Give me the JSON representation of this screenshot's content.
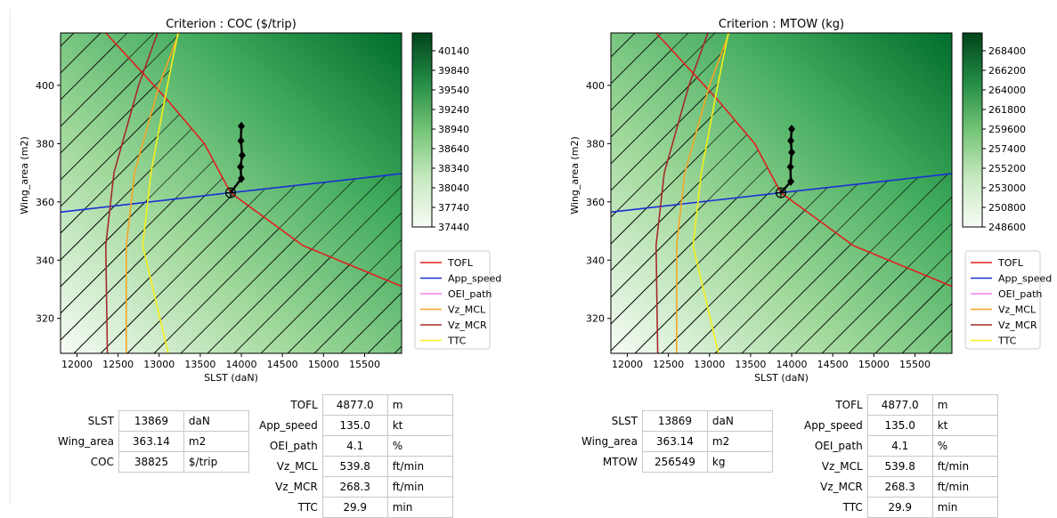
{
  "colors": {
    "TOFL": "#e02020",
    "App_speed": "#1a2fd6",
    "OEI_path": "#ee82ee",
    "Vz_MCL": "#f5a623",
    "Vz_MCR": "#a52a2a",
    "TTC": "#f5ef1a",
    "colormap_low": "#f7fcf5",
    "colormap_high": "#00441b"
  },
  "chart_data": [
    {
      "type": "contour",
      "title": "Criterion : COC ($/trip)",
      "xlabel": "SLST (daN)",
      "ylabel": "Wing_area (m2)",
      "xlim": [
        11800,
        15950
      ],
      "ylim": [
        308,
        418
      ],
      "xticks": [
        "12000",
        "12500",
        "13000",
        "13500",
        "14000",
        "14500",
        "15000",
        "15500"
      ],
      "yticks": [
        "320",
        "340",
        "360",
        "380",
        "400"
      ],
      "colorbar_ticks": [
        "37440",
        "37740",
        "38040",
        "38340",
        "38640",
        "38940",
        "39240",
        "39540",
        "39840",
        "40140"
      ],
      "optimum": {
        "x": 13869,
        "y": 363.14
      },
      "search_path": [
        [
          13869,
          363.14
        ],
        [
          14000,
          368
        ],
        [
          13990,
          372
        ],
        [
          14010,
          376
        ],
        [
          13995,
          381
        ],
        [
          14000,
          386
        ]
      ],
      "legend": [
        "TOFL",
        "App_speed",
        "OEI_path",
        "Vz_MCL",
        "Vz_MCR",
        "TTC"
      ],
      "legend_position": "right",
      "series": [
        {
          "name": "TOFL",
          "points": [
            [
              12350,
              418
            ],
            [
              13100,
              395
            ],
            [
              13550,
              380
            ],
            [
              13869,
              363.14
            ],
            [
              14750,
              345
            ],
            [
              15950,
              331
            ]
          ]
        },
        {
          "name": "App_speed",
          "points": [
            [
              11800,
              356.5
            ],
            [
              13869,
              363.14
            ],
            [
              15950,
              369.7
            ]
          ]
        },
        {
          "name": "OEI_path",
          "points": []
        },
        {
          "name": "Vz_MCL",
          "points": [
            [
              13240,
              418
            ],
            [
              13000,
              400
            ],
            [
              12700,
              370
            ],
            [
              12600,
              345
            ],
            [
              12600,
              308
            ]
          ]
        },
        {
          "name": "Vz_MCR",
          "points": [
            [
              12980,
              418
            ],
            [
              12750,
              400
            ],
            [
              12450,
              370
            ],
            [
              12350,
              345
            ],
            [
              12370,
              308
            ]
          ]
        },
        {
          "name": "TTC",
          "points": [
            [
              13230,
              418
            ],
            [
              13100,
              400
            ],
            [
              12900,
              370
            ],
            [
              12800,
              345
            ],
            [
              13110,
              308
            ]
          ]
        }
      ]
    },
    {
      "type": "contour",
      "title": "Criterion : MTOW (kg)",
      "xlabel": "SLST (daN)",
      "ylabel": "Wing_area (m2)",
      "xlim": [
        11800,
        15950
      ],
      "ylim": [
        308,
        418
      ],
      "xticks": [
        "12000",
        "12500",
        "13000",
        "13500",
        "14000",
        "14500",
        "15000",
        "15500"
      ],
      "yticks": [
        "320",
        "340",
        "360",
        "380",
        "400"
      ],
      "colorbar_ticks": [
        "248600",
        "250800",
        "253000",
        "255200",
        "257400",
        "259600",
        "261800",
        "264000",
        "266200",
        "268400"
      ],
      "optimum": {
        "x": 13869,
        "y": 363.14
      },
      "search_path": [
        [
          13869,
          363.14
        ],
        [
          13990,
          367
        ],
        [
          13985,
          372
        ],
        [
          14000,
          377
        ],
        [
          13990,
          381
        ],
        [
          14000,
          385
        ]
      ],
      "legend": [
        "TOFL",
        "App_speed",
        "OEI_path",
        "Vz_MCL",
        "Vz_MCR",
        "TTC"
      ],
      "legend_position": "right",
      "series": [
        {
          "name": "TOFL",
          "points": [
            [
              12350,
              418
            ],
            [
              13100,
              395
            ],
            [
              13550,
              380
            ],
            [
              13869,
              363.14
            ],
            [
              14750,
              345
            ],
            [
              15950,
              331
            ]
          ]
        },
        {
          "name": "App_speed",
          "points": [
            [
              11800,
              356.5
            ],
            [
              13869,
              363.14
            ],
            [
              15950,
              369.7
            ]
          ]
        },
        {
          "name": "OEI_path",
          "points": []
        },
        {
          "name": "Vz_MCL",
          "points": [
            [
              13240,
              418
            ],
            [
              13000,
              400
            ],
            [
              12700,
              370
            ],
            [
              12600,
              345
            ],
            [
              12600,
              308
            ]
          ]
        },
        {
          "name": "Vz_MCR",
          "points": [
            [
              12980,
              418
            ],
            [
              12750,
              400
            ],
            [
              12450,
              370
            ],
            [
              12350,
              345
            ],
            [
              12370,
              308
            ]
          ]
        },
        {
          "name": "TTC",
          "points": [
            [
              13230,
              418
            ],
            [
              13100,
              400
            ],
            [
              12900,
              370
            ],
            [
              12800,
              345
            ],
            [
              13110,
              308
            ]
          ]
        }
      ]
    }
  ],
  "tables": [
    {
      "design": [
        [
          "SLST",
          "13869",
          "daN"
        ],
        [
          "Wing_area",
          "363.14",
          "m2"
        ],
        [
          "COC",
          "38825",
          "$/trip"
        ]
      ],
      "constraints": [
        [
          "TOFL",
          "4877.0",
          "m"
        ],
        [
          "App_speed",
          "135.0",
          "kt"
        ],
        [
          "OEI_path",
          "4.1",
          "%"
        ],
        [
          "Vz_MCL",
          "539.8",
          "ft/min"
        ],
        [
          "Vz_MCR",
          "268.3",
          "ft/min"
        ],
        [
          "TTC",
          "29.9",
          "min"
        ]
      ]
    },
    {
      "design": [
        [
          "SLST",
          "13869",
          "daN"
        ],
        [
          "Wing_area",
          "363.14",
          "m2"
        ],
        [
          "MTOW",
          "256549",
          "kg"
        ]
      ],
      "constraints": [
        [
          "TOFL",
          "4877.0",
          "m"
        ],
        [
          "App_speed",
          "135.0",
          "kt"
        ],
        [
          "OEI_path",
          "4.1",
          "%"
        ],
        [
          "Vz_MCL",
          "539.8",
          "ft/min"
        ],
        [
          "Vz_MCR",
          "268.3",
          "ft/min"
        ],
        [
          "TTC",
          "29.9",
          "min"
        ]
      ]
    }
  ]
}
